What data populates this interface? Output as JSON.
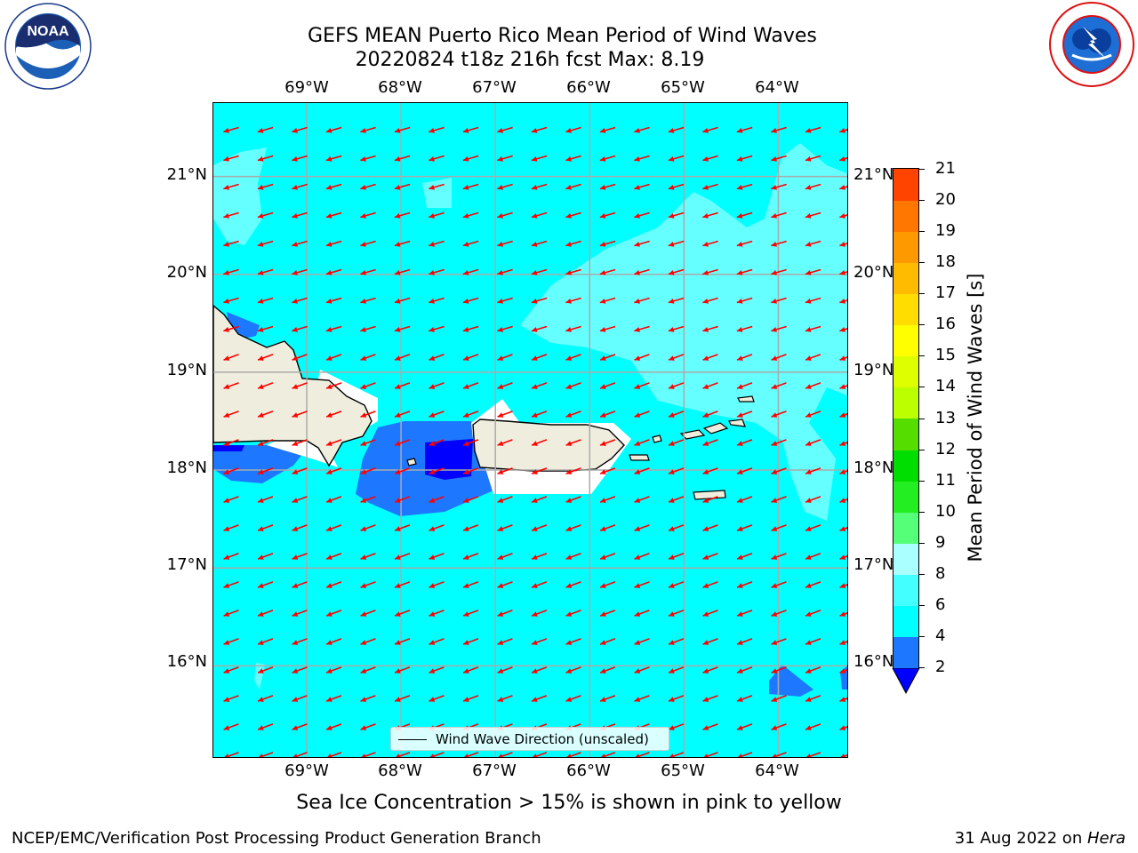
{
  "title": {
    "line1": "GEFS MEAN Puerto Rico Mean Period of Wind Waves",
    "line2": "20220824 t18z 216h fcst   Max: 8.19"
  },
  "chart_data": {
    "type": "heatmap",
    "variable": "Mean Period of Wind Waves [s]",
    "region": "Puerto Rico",
    "max_value": 8.19,
    "lon_ticks": [
      "69°W",
      "68°W",
      "67°W",
      "66°W",
      "65°W",
      "64°W"
    ],
    "lat_ticks": [
      "21°N",
      "20°N",
      "19°N",
      "18°N",
      "17°N",
      "16°N"
    ],
    "lon_values": [
      -69,
      -68,
      -67,
      -66,
      -65,
      -64
    ],
    "lat_values": [
      21,
      20,
      19,
      18,
      17,
      16
    ],
    "lon_range": [
      -69.99,
      -63.25
    ],
    "lat_range": [
      15.05,
      21.75
    ],
    "grid": true,
    "dominant_range": "4-6 s",
    "wind_wave_direction": "mostly from the east-northeast (arrows pointing west-southwest)",
    "colorbar": {
      "label": "Mean Period of Wind Waves [s]",
      "ticks": [
        2,
        4,
        6,
        8,
        9,
        10,
        11,
        12,
        13,
        14,
        15,
        16,
        17,
        18,
        19,
        20,
        21
      ],
      "colors": [
        "#1e78ff",
        "#00ffff",
        "#44ffff",
        "#aaffff",
        "#55ff77",
        "#22ee22",
        "#00dd00",
        "#55dd00",
        "#bbff00",
        "#ddff00",
        "#ffff00",
        "#ffdd00",
        "#ffbb00",
        "#ff9900",
        "#ff7700",
        "#ff4400",
        "#ff2200",
        "#ff0000"
      ],
      "under_color": "#0000ff"
    },
    "legend": "Wind Wave Direction (unscaled)"
  },
  "footnote": "Sea Ice Concentration > 15% is shown in pink to yellow",
  "credit": "NCEP/EMC/Verification Post Processing Product Generation Branch",
  "date_prefix": "31 Aug 2022 on ",
  "date_machine": "Hera",
  "logos": {
    "noaa": "NOAA",
    "noaa_ring": "NATIONAL OCEANIC AND ATMOSPHERIC ADMINISTRATION",
    "noaa_ring_bottom": "U.S. DEPARTMENT OF COMMERCE",
    "nws_ring": "NATIONAL WEATHER SERVICE"
  },
  "colors": {
    "ocean": "#00ffff",
    "land": "#efeede",
    "arrows": "#ff0000",
    "light_cyan": "#66ffff",
    "dark_blue": "#1e78ff",
    "deep_blue": "#0000ff"
  }
}
